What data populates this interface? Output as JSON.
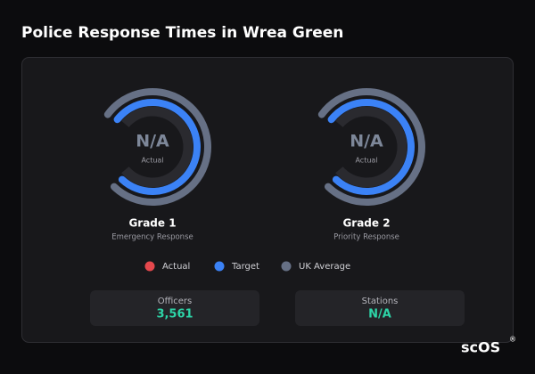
{
  "header": {
    "title": "Police Response Times in Wrea Green"
  },
  "gauges": [
    {
      "value": "N/A",
      "value_caption": "Actual",
      "grade": "Grade 1",
      "subtitle": "Emergency Response"
    },
    {
      "value": "N/A",
      "value_caption": "Actual",
      "grade": "Grade 2",
      "subtitle": "Priority Response"
    }
  ],
  "legend": [
    {
      "label": "Actual",
      "color": "#e5484d"
    },
    {
      "label": "Target",
      "color": "#3b82f6"
    },
    {
      "label": "UK Average",
      "color": "#667085"
    }
  ],
  "stats": [
    {
      "label": "Officers",
      "value": "3,561"
    },
    {
      "label": "Stations",
      "value": "N/A"
    }
  ],
  "logo": {
    "text": "scOS",
    "mark": "®"
  }
}
